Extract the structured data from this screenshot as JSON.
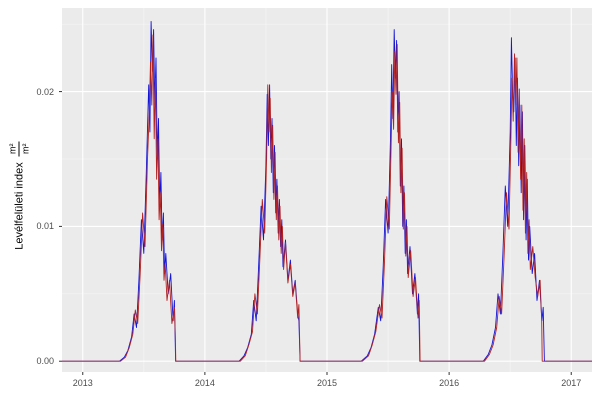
{
  "figure": {
    "background": "#ffffff"
  },
  "axes": {
    "y_label_text": "Levélfelületi index",
    "y_frac_top": "m²",
    "y_frac_bottom": "m²",
    "x_tick_labels": [
      "2013",
      "2014",
      "2015",
      "2016",
      "2017"
    ],
    "x_tick_values": [
      2013,
      2014,
      2015,
      2016,
      2017
    ],
    "y_tick_labels": [
      "0.00",
      "0.01",
      "0.02"
    ],
    "y_tick_values": [
      0,
      0.01,
      0.02
    ]
  },
  "chart_data": {
    "type": "line",
    "title": "",
    "xlabel": "",
    "ylabel": "Levélfelületi index (m²/m²)",
    "x_range": [
      2012.83,
      2017.17
    ],
    "y_range": [
      -0.0008,
      0.0262
    ],
    "x_major": [
      2013,
      2014,
      2015,
      2016,
      2017
    ],
    "x_minor": [
      2013.5,
      2014.5,
      2015.5,
      2016.5
    ],
    "y_major": [
      0,
      0.01,
      0.02
    ],
    "y_minor": [
      0.005,
      0.015,
      0.025
    ],
    "panel_bg": "#ebebeb",
    "grid_major_color": "#ffffff",
    "grid_minor_color": "#f5f5f5",
    "tick_color": "#333333",
    "legend": "none",
    "series": [
      {
        "name": "series-blue",
        "color": "#1515d6",
        "stroke_width": 0.9,
        "points": [
          [
            2012.83,
            0
          ],
          [
            2013.3,
            0
          ],
          [
            2013.34,
            0.0003
          ],
          [
            2013.37,
            0.0008
          ],
          [
            2013.4,
            0.0018
          ],
          [
            2013.42,
            0.0035
          ],
          [
            2013.44,
            0.0025
          ],
          [
            2013.46,
            0.006
          ],
          [
            2013.48,
            0.0105
          ],
          [
            2013.5,
            0.008
          ],
          [
            2013.52,
            0.014
          ],
          [
            2013.54,
            0.0205
          ],
          [
            2013.55,
            0.017
          ],
          [
            2013.56,
            0.0252
          ],
          [
            2013.57,
            0.0215
          ],
          [
            2013.58,
            0.0246
          ],
          [
            2013.59,
            0.019
          ],
          [
            2013.6,
            0.0225
          ],
          [
            2013.61,
            0.015
          ],
          [
            2013.62,
            0.018
          ],
          [
            2013.63,
            0.0115
          ],
          [
            2013.64,
            0.014
          ],
          [
            2013.65,
            0.009
          ],
          [
            2013.66,
            0.011
          ],
          [
            2013.67,
            0.0065
          ],
          [
            2013.68,
            0.008
          ],
          [
            2013.7,
            0.005
          ],
          [
            2013.72,
            0.0065
          ],
          [
            2013.74,
            0.003
          ],
          [
            2013.75,
            0.0045
          ],
          [
            2013.76,
            0
          ],
          [
            2014.28,
            0
          ],
          [
            2014.32,
            0.0004
          ],
          [
            2014.35,
            0.001
          ],
          [
            2014.38,
            0.002
          ],
          [
            2014.4,
            0.0045
          ],
          [
            2014.42,
            0.003
          ],
          [
            2014.44,
            0.007
          ],
          [
            2014.46,
            0.0115
          ],
          [
            2014.48,
            0.009
          ],
          [
            2014.5,
            0.0145
          ],
          [
            2014.51,
            0.0198
          ],
          [
            2014.52,
            0.016
          ],
          [
            2014.53,
            0.0205
          ],
          [
            2014.54,
            0.015
          ],
          [
            2014.55,
            0.018
          ],
          [
            2014.56,
            0.0125
          ],
          [
            2014.57,
            0.016
          ],
          [
            2014.58,
            0.011
          ],
          [
            2014.59,
            0.0135
          ],
          [
            2014.6,
            0.0095
          ],
          [
            2014.61,
            0.012
          ],
          [
            2014.62,
            0.0085
          ],
          [
            2014.63,
            0.0105
          ],
          [
            2014.64,
            0.007
          ],
          [
            2014.66,
            0.009
          ],
          [
            2014.68,
            0.006
          ],
          [
            2014.7,
            0.0075
          ],
          [
            2014.72,
            0.005
          ],
          [
            2014.74,
            0.006
          ],
          [
            2014.76,
            0.0035
          ],
          [
            2014.77,
            0.003
          ],
          [
            2014.78,
            0
          ],
          [
            2015.28,
            0
          ],
          [
            2015.33,
            0.0004
          ],
          [
            2015.36,
            0.001
          ],
          [
            2015.39,
            0.002
          ],
          [
            2015.42,
            0.004
          ],
          [
            2015.44,
            0.003
          ],
          [
            2015.46,
            0.007
          ],
          [
            2015.48,
            0.012
          ],
          [
            2015.5,
            0.0095
          ],
          [
            2015.52,
            0.0165
          ],
          [
            2015.53,
            0.022
          ],
          [
            2015.54,
            0.018
          ],
          [
            2015.55,
            0.0246
          ],
          [
            2015.56,
            0.021
          ],
          [
            2015.57,
            0.0238
          ],
          [
            2015.58,
            0.017
          ],
          [
            2015.59,
            0.02
          ],
          [
            2015.6,
            0.013
          ],
          [
            2015.61,
            0.0165
          ],
          [
            2015.62,
            0.01
          ],
          [
            2015.63,
            0.013
          ],
          [
            2015.64,
            0.008
          ],
          [
            2015.65,
            0.0105
          ],
          [
            2015.66,
            0.0065
          ],
          [
            2015.68,
            0.0085
          ],
          [
            2015.7,
            0.005
          ],
          [
            2015.72,
            0.0065
          ],
          [
            2015.74,
            0.0035
          ],
          [
            2015.75,
            0.005
          ],
          [
            2015.76,
            0
          ],
          [
            2016.28,
            0
          ],
          [
            2016.32,
            0.0005
          ],
          [
            2016.35,
            0.0012
          ],
          [
            2016.38,
            0.0025
          ],
          [
            2016.4,
            0.005
          ],
          [
            2016.42,
            0.0035
          ],
          [
            2016.44,
            0.008
          ],
          [
            2016.46,
            0.013
          ],
          [
            2016.48,
            0.01
          ],
          [
            2016.5,
            0.017
          ],
          [
            2016.51,
            0.024
          ],
          [
            2016.52,
            0.02
          ],
          [
            2016.53,
            0.0185
          ],
          [
            2016.54,
            0.0225
          ],
          [
            2016.55,
            0.016
          ],
          [
            2016.56,
            0.021
          ],
          [
            2016.57,
            0.0145
          ],
          [
            2016.58,
            0.019
          ],
          [
            2016.59,
            0.0125
          ],
          [
            2016.6,
            0.0185
          ],
          [
            2016.61,
            0.0105
          ],
          [
            2016.62,
            0.016
          ],
          [
            2016.63,
            0.009
          ],
          [
            2016.64,
            0.0135
          ],
          [
            2016.65,
            0.0075
          ],
          [
            2016.66,
            0.01
          ],
          [
            2016.68,
            0.0065
          ],
          [
            2016.7,
            0.008
          ],
          [
            2016.72,
            0.0045
          ],
          [
            2016.74,
            0.006
          ],
          [
            2016.76,
            0.003
          ],
          [
            2016.77,
            0.004
          ],
          [
            2016.78,
            0
          ],
          [
            2017.17,
            0
          ]
        ]
      },
      {
        "name": "series-dark-red",
        "color": "#b22222",
        "stroke_width": 0.9,
        "points": [
          [
            2012.83,
            0
          ],
          [
            2013.31,
            0
          ],
          [
            2013.35,
            0.0003
          ],
          [
            2013.38,
            0.001
          ],
          [
            2013.41,
            0.002
          ],
          [
            2013.43,
            0.0038
          ],
          [
            2013.45,
            0.0028
          ],
          [
            2013.47,
            0.0065
          ],
          [
            2013.49,
            0.011
          ],
          [
            2013.51,
            0.0085
          ],
          [
            2013.53,
            0.015
          ],
          [
            2013.545,
            0.0185
          ],
          [
            2013.555,
            0.0222
          ],
          [
            2013.565,
            0.019
          ],
          [
            2013.575,
            0.0242
          ],
          [
            2013.585,
            0.0165
          ],
          [
            2013.595,
            0.021
          ],
          [
            2013.605,
            0.0135
          ],
          [
            2013.615,
            0.0165
          ],
          [
            2013.625,
            0.0105
          ],
          [
            2013.635,
            0.0125
          ],
          [
            2013.645,
            0.0082
          ],
          [
            2013.655,
            0.0102
          ],
          [
            2013.665,
            0.006
          ],
          [
            2013.675,
            0.0072
          ],
          [
            2013.69,
            0.0045
          ],
          [
            2013.71,
            0.006
          ],
          [
            2013.73,
            0.0028
          ],
          [
            2013.75,
            0.004
          ],
          [
            2013.758,
            0.002
          ],
          [
            2013.762,
            0
          ],
          [
            2014.29,
            0
          ],
          [
            2014.33,
            0.0004
          ],
          [
            2014.36,
            0.0012
          ],
          [
            2014.39,
            0.0022
          ],
          [
            2014.41,
            0.005
          ],
          [
            2014.43,
            0.0035
          ],
          [
            2014.45,
            0.0075
          ],
          [
            2014.47,
            0.012
          ],
          [
            2014.49,
            0.0095
          ],
          [
            2014.505,
            0.015
          ],
          [
            2014.515,
            0.0205
          ],
          [
            2014.525,
            0.017
          ],
          [
            2014.535,
            0.0195
          ],
          [
            2014.545,
            0.014
          ],
          [
            2014.555,
            0.0175
          ],
          [
            2014.565,
            0.012
          ],
          [
            2014.575,
            0.0155
          ],
          [
            2014.585,
            0.0105
          ],
          [
            2014.595,
            0.013
          ],
          [
            2014.605,
            0.009
          ],
          [
            2014.615,
            0.0115
          ],
          [
            2014.625,
            0.008
          ],
          [
            2014.635,
            0.01
          ],
          [
            2014.645,
            0.0068
          ],
          [
            2014.66,
            0.0088
          ],
          [
            2014.68,
            0.0058
          ],
          [
            2014.7,
            0.0072
          ],
          [
            2014.72,
            0.0048
          ],
          [
            2014.74,
            0.0058
          ],
          [
            2014.76,
            0.0032
          ],
          [
            2014.77,
            0.0042
          ],
          [
            2014.78,
            0
          ],
          [
            2015.29,
            0
          ],
          [
            2015.34,
            0.0004
          ],
          [
            2015.37,
            0.0012
          ],
          [
            2015.4,
            0.0022
          ],
          [
            2015.43,
            0.0042
          ],
          [
            2015.45,
            0.0032
          ],
          [
            2015.47,
            0.0072
          ],
          [
            2015.49,
            0.0122
          ],
          [
            2015.51,
            0.0098
          ],
          [
            2015.525,
            0.016
          ],
          [
            2015.535,
            0.02
          ],
          [
            2015.545,
            0.0172
          ],
          [
            2015.555,
            0.023
          ],
          [
            2015.565,
            0.0198
          ],
          [
            2015.575,
            0.0235
          ],
          [
            2015.585,
            0.0162
          ],
          [
            2015.595,
            0.0192
          ],
          [
            2015.605,
            0.0125
          ],
          [
            2015.615,
            0.0158
          ],
          [
            2015.625,
            0.0098
          ],
          [
            2015.635,
            0.0125
          ],
          [
            2015.645,
            0.0078
          ],
          [
            2015.655,
            0.01
          ],
          [
            2015.665,
            0.0062
          ],
          [
            2015.685,
            0.0082
          ],
          [
            2015.705,
            0.0048
          ],
          [
            2015.725,
            0.0062
          ],
          [
            2015.745,
            0.0032
          ],
          [
            2015.755,
            0.0045
          ],
          [
            2015.762,
            0
          ],
          [
            2016.29,
            0
          ],
          [
            2016.33,
            0.0005
          ],
          [
            2016.36,
            0.0012
          ],
          [
            2016.39,
            0.0025
          ],
          [
            2016.41,
            0.0048
          ],
          [
            2016.43,
            0.0035
          ],
          [
            2016.45,
            0.0078
          ],
          [
            2016.47,
            0.0125
          ],
          [
            2016.49,
            0.0098
          ],
          [
            2016.505,
            0.0162
          ],
          [
            2016.515,
            0.021
          ],
          [
            2016.525,
            0.0178
          ],
          [
            2016.535,
            0.0228
          ],
          [
            2016.545,
            0.019
          ],
          [
            2016.555,
            0.0225
          ],
          [
            2016.565,
            0.0155
          ],
          [
            2016.575,
            0.0202
          ],
          [
            2016.585,
            0.0135
          ],
          [
            2016.595,
            0.019
          ],
          [
            2016.605,
            0.0112
          ],
          [
            2016.615,
            0.0165
          ],
          [
            2016.625,
            0.0095
          ],
          [
            2016.635,
            0.014
          ],
          [
            2016.645,
            0.008
          ],
          [
            2016.655,
            0.0105
          ],
          [
            2016.665,
            0.0068
          ],
          [
            2016.685,
            0.0085
          ],
          [
            2016.705,
            0.0062
          ],
          [
            2016.725,
            0.0048
          ],
          [
            2016.745,
            0.006
          ],
          [
            2016.758,
            0.003
          ],
          [
            2016.762,
            0
          ],
          [
            2017.17,
            0
          ]
        ]
      }
    ]
  }
}
